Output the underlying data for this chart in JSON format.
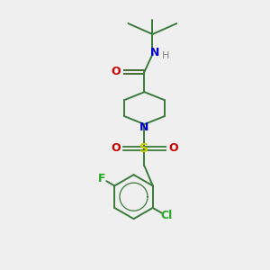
{
  "background_color": "#efefef",
  "bond_color": "#3a7a3a",
  "colors": {
    "N": "#0000cc",
    "O": "#cc0000",
    "S": "#cccc00",
    "F": "#22aa22",
    "Cl": "#22aa22",
    "H": "#888888"
  },
  "figsize": [
    3.0,
    3.0
  ],
  "dpi": 100
}
